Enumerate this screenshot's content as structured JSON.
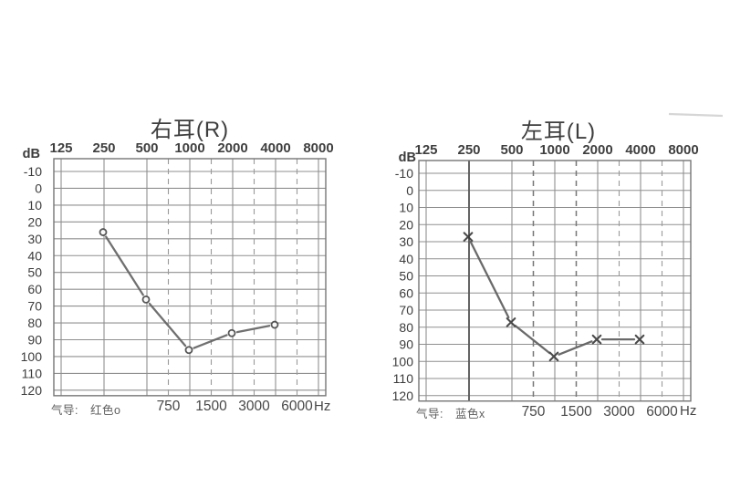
{
  "page": {
    "background": "#ffffff",
    "description": "纯音测听气导听阈图（双耳audiogram）"
  },
  "chart_data": [
    {
      "type": "line",
      "ear": "right",
      "title": "右耳(R)",
      "ylabel": "dB",
      "x_axis_top_ticks": [
        "125",
        "250",
        "500",
        "1000",
        "2000",
        "4000",
        "8000"
      ],
      "x_axis_bottom_ticks": [
        "750",
        "1500",
        "3000",
        "6000"
      ],
      "x_axis_unit": "Hz",
      "y_axis_ticks": [
        "-10",
        "0",
        "10",
        "20",
        "30",
        "40",
        "50",
        "60",
        "70",
        "80",
        "90",
        "100",
        "110",
        "120"
      ],
      "ylim": [
        -10,
        120
      ],
      "y_step": 10,
      "grid": true,
      "legend": {
        "label": "气导:",
        "value": "红色o"
      },
      "series": [
        {
          "name": "气导 红色o",
          "marker": "circle",
          "marker_color": "#4a4a4a",
          "line_color": "#646464",
          "points": [
            {
              "x": 250,
              "y": 25
            },
            {
              "x": 500,
              "y": 65
            },
            {
              "x": 1000,
              "y": 95
            },
            {
              "x": 2000,
              "y": 85
            },
            {
              "x": 4000,
              "y": 80
            }
          ]
        }
      ]
    },
    {
      "type": "line",
      "ear": "left",
      "title": "左耳(L)",
      "ylabel": "dB",
      "x_axis_top_ticks": [
        "125",
        "250",
        "500",
        "1000",
        "2000",
        "4000",
        "8000"
      ],
      "x_axis_bottom_ticks": [
        "750",
        "1500",
        "3000",
        "6000"
      ],
      "x_axis_unit": "Hz",
      "y_axis_ticks": [
        "-10",
        "0",
        "10",
        "20",
        "30",
        "40",
        "50",
        "60",
        "70",
        "80",
        "90",
        "100",
        "110",
        "120"
      ],
      "ylim": [
        -10,
        120
      ],
      "y_step": 10,
      "grid": true,
      "legend": {
        "label": "气导:",
        "value": "蓝色x"
      },
      "series": [
        {
          "name": "气导 蓝色x",
          "marker": "x",
          "marker_color": "#3c3c3c",
          "line_color": "#5e5e5e",
          "points": [
            {
              "x": 250,
              "y": 25
            },
            {
              "x": 500,
              "y": 75
            },
            {
              "x": 1000,
              "y": 95
            },
            {
              "x": 2000,
              "y": 85
            },
            {
              "x": 4000,
              "y": 85
            }
          ]
        }
      ]
    }
  ]
}
